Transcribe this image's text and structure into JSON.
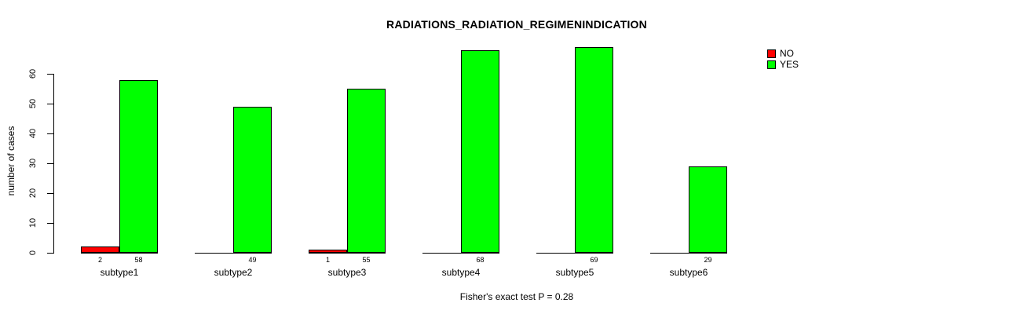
{
  "title": "RADIATIONS_RADIATION_REGIMENINDICATION",
  "y_axis": {
    "label": "number of cases",
    "ticks": [
      0,
      10,
      20,
      30,
      40,
      50,
      60
    ]
  },
  "legend": {
    "items": [
      {
        "label": "NO",
        "color": "#ff0000"
      },
      {
        "label": "YES",
        "color": "#00ff00"
      }
    ]
  },
  "footer": "Fisher's exact test P = 0.28",
  "chart_data": {
    "type": "bar",
    "title": "RADIATIONS_RADIATION_REGIMENINDICATION",
    "xlabel": "",
    "ylabel": "number of cases",
    "categories": [
      "subtype1",
      "subtype2",
      "subtype3",
      "subtype4",
      "subtype5",
      "subtype6"
    ],
    "series": [
      {
        "name": "NO",
        "color": "#ff0000",
        "values": [
          2,
          0,
          1,
          0,
          0,
          0
        ]
      },
      {
        "name": "YES",
        "color": "#00ff00",
        "values": [
          58,
          49,
          55,
          68,
          69,
          29
        ]
      }
    ],
    "bar_value_labels_shown": [
      [
        2,
        null,
        1,
        null,
        null,
        null
      ],
      [
        58,
        49,
        55,
        68,
        69,
        29
      ]
    ],
    "yticks": [
      0,
      10,
      20,
      30,
      40,
      50,
      60
    ],
    "ylim": [
      0,
      70
    ],
    "grid": false,
    "legend_position": "top-right",
    "annotation": "Fisher's exact test P = 0.28"
  }
}
